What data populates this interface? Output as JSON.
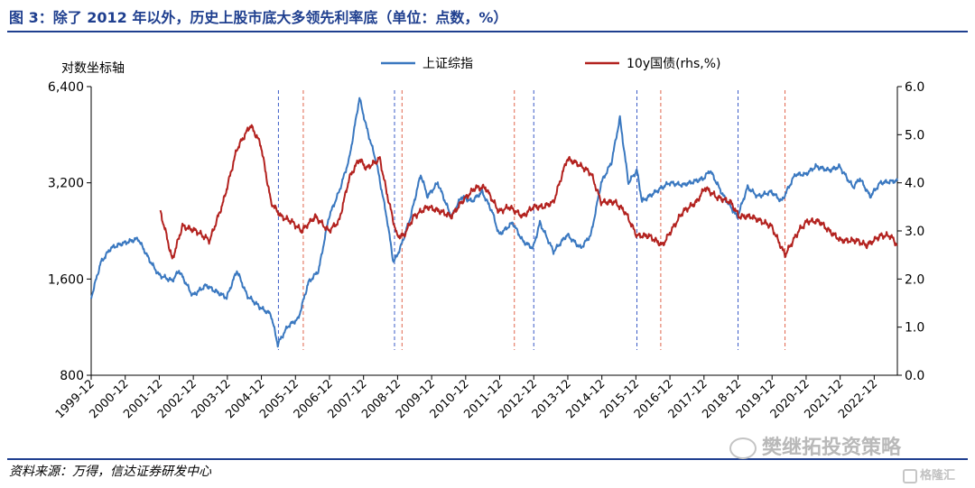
{
  "figure": {
    "title": "图 3：除了 2012 年以外，历史上股市底大多领先利率底（单位：点数，%）",
    "source": "资料来源：万得，信达证券研发中心",
    "watermark": "樊继拓投资策略",
    "brand": "格隆汇"
  },
  "chart_data": {
    "type": "line",
    "y_left_label": "对数坐标轴",
    "y_left_scale": "log",
    "y_left_ticks": [
      800,
      1600,
      3200,
      6400
    ],
    "y_left_tick_labels": [
      "800",
      "1,600",
      "3,200",
      "6,400"
    ],
    "y_left_range": [
      800,
      6400
    ],
    "y_right_ticks": [
      0.0,
      1.0,
      2.0,
      3.0,
      4.0,
      5.0,
      6.0
    ],
    "y_right_tick_labels": [
      "0.0",
      "1.0",
      "2.0",
      "3.0",
      "4.0",
      "5.0",
      "6.0"
    ],
    "y_right_range": [
      0,
      6
    ],
    "x_range": [
      1999.92,
      2023.6
    ],
    "x_ticks": [
      "1999-12",
      "2000-12",
      "2001-12",
      "2002-12",
      "2003-12",
      "2004-12",
      "2005-12",
      "2006-12",
      "2007-12",
      "2008-12",
      "2009-12",
      "2010-12",
      "2011-12",
      "2012-12",
      "2013-12",
      "2014-12",
      "2015-12",
      "2016-12",
      "2017-12",
      "2018-12",
      "2019-12",
      "2020-12",
      "2021-12",
      "2022-12"
    ],
    "legend_position": "top-center",
    "grid": false,
    "series": [
      {
        "name": "上证综指",
        "axis": "left",
        "color": "#3a78c0",
        "points": [
          [
            1999.92,
            1400
          ],
          [
            2000.2,
            1800
          ],
          [
            2000.5,
            2000
          ],
          [
            2000.8,
            2060
          ],
          [
            2001.3,
            2140
          ],
          [
            2001.6,
            1860
          ],
          [
            2001.9,
            1650
          ],
          [
            2002.3,
            1580
          ],
          [
            2002.5,
            1700
          ],
          [
            2002.9,
            1420
          ],
          [
            2003.3,
            1530
          ],
          [
            2003.5,
            1480
          ],
          [
            2003.9,
            1400
          ],
          [
            2004.2,
            1700
          ],
          [
            2004.5,
            1420
          ],
          [
            2004.9,
            1300
          ],
          [
            2005.2,
            1240
          ],
          [
            2005.4,
            1000
          ],
          [
            2005.7,
            1140
          ],
          [
            2006.0,
            1200
          ],
          [
            2006.3,
            1560
          ],
          [
            2006.6,
            1700
          ],
          [
            2006.9,
            2500
          ],
          [
            2007.2,
            3000
          ],
          [
            2007.5,
            3800
          ],
          [
            2007.8,
            5900
          ],
          [
            2008.0,
            4800
          ],
          [
            2008.3,
            3700
          ],
          [
            2008.6,
            2500
          ],
          [
            2008.8,
            1800
          ],
          [
            2009.0,
            2000
          ],
          [
            2009.3,
            2500
          ],
          [
            2009.6,
            3400
          ],
          [
            2009.8,
            2900
          ],
          [
            2010.1,
            3200
          ],
          [
            2010.5,
            2500
          ],
          [
            2010.8,
            2900
          ],
          [
            2011.1,
            2800
          ],
          [
            2011.4,
            3000
          ],
          [
            2011.7,
            2600
          ],
          [
            2011.9,
            2200
          ],
          [
            2012.3,
            2400
          ],
          [
            2012.6,
            2100
          ],
          [
            2012.9,
            2000
          ],
          [
            2013.1,
            2400
          ],
          [
            2013.5,
            1950
          ],
          [
            2013.9,
            2200
          ],
          [
            2014.3,
            2000
          ],
          [
            2014.6,
            2200
          ],
          [
            2014.9,
            3200
          ],
          [
            2015.2,
            3700
          ],
          [
            2015.45,
            5100
          ],
          [
            2015.7,
            3200
          ],
          [
            2015.95,
            3500
          ],
          [
            2016.1,
            2800
          ],
          [
            2016.5,
            3000
          ],
          [
            2016.9,
            3200
          ],
          [
            2017.3,
            3150
          ],
          [
            2017.9,
            3300
          ],
          [
            2018.1,
            3500
          ],
          [
            2018.5,
            2900
          ],
          [
            2018.9,
            2500
          ],
          [
            2019.2,
            3100
          ],
          [
            2019.5,
            2900
          ],
          [
            2019.9,
            3000
          ],
          [
            2020.2,
            2800
          ],
          [
            2020.6,
            3400
          ],
          [
            2020.9,
            3400
          ],
          [
            2021.2,
            3600
          ],
          [
            2021.6,
            3500
          ],
          [
            2021.9,
            3600
          ],
          [
            2022.3,
            3100
          ],
          [
            2022.5,
            3300
          ],
          [
            2022.8,
            2900
          ],
          [
            2023.1,
            3200
          ],
          [
            2023.6,
            3250
          ]
        ]
      },
      {
        "name": "10y国债(rhs,%)",
        "axis": "right",
        "color": "#b3221f",
        "points": [
          [
            2001.95,
            3.4
          ],
          [
            2002.1,
            3.0
          ],
          [
            2002.3,
            2.4
          ],
          [
            2002.6,
            3.1
          ],
          [
            2003.0,
            3.0
          ],
          [
            2003.4,
            2.8
          ],
          [
            2003.8,
            3.6
          ],
          [
            2004.2,
            4.7
          ],
          [
            2004.6,
            5.2
          ],
          [
            2004.9,
            4.8
          ],
          [
            2005.2,
            3.6
          ],
          [
            2005.5,
            3.3
          ],
          [
            2005.8,
            3.2
          ],
          [
            2006.1,
            3.0
          ],
          [
            2006.5,
            3.3
          ],
          [
            2006.9,
            3.0
          ],
          [
            2007.2,
            3.2
          ],
          [
            2007.5,
            4.1
          ],
          [
            2007.8,
            4.5
          ],
          [
            2008.0,
            4.3
          ],
          [
            2008.4,
            4.5
          ],
          [
            2008.6,
            3.8
          ],
          [
            2008.9,
            2.9
          ],
          [
            2009.1,
            2.9
          ],
          [
            2009.4,
            3.3
          ],
          [
            2009.8,
            3.5
          ],
          [
            2010.2,
            3.4
          ],
          [
            2010.5,
            3.3
          ],
          [
            2010.8,
            3.6
          ],
          [
            2011.2,
            3.9
          ],
          [
            2011.5,
            3.9
          ],
          [
            2011.9,
            3.4
          ],
          [
            2012.2,
            3.5
          ],
          [
            2012.6,
            3.3
          ],
          [
            2012.9,
            3.5
          ],
          [
            2013.2,
            3.5
          ],
          [
            2013.5,
            3.6
          ],
          [
            2013.9,
            4.5
          ],
          [
            2014.2,
            4.4
          ],
          [
            2014.6,
            4.2
          ],
          [
            2014.9,
            3.6
          ],
          [
            2015.3,
            3.6
          ],
          [
            2015.6,
            3.4
          ],
          [
            2015.95,
            2.9
          ],
          [
            2016.3,
            2.9
          ],
          [
            2016.7,
            2.7
          ],
          [
            2016.95,
            3.0
          ],
          [
            2017.3,
            3.4
          ],
          [
            2017.7,
            3.6
          ],
          [
            2017.95,
            3.9
          ],
          [
            2018.3,
            3.7
          ],
          [
            2018.7,
            3.6
          ],
          [
            2018.95,
            3.3
          ],
          [
            2019.3,
            3.3
          ],
          [
            2019.6,
            3.2
          ],
          [
            2019.9,
            3.1
          ],
          [
            2020.1,
            2.8
          ],
          [
            2020.3,
            2.5
          ],
          [
            2020.7,
            3.0
          ],
          [
            2020.95,
            3.2
          ],
          [
            2021.3,
            3.2
          ],
          [
            2021.6,
            3.0
          ],
          [
            2021.95,
            2.8
          ],
          [
            2022.4,
            2.8
          ],
          [
            2022.7,
            2.7
          ],
          [
            2023.1,
            2.9
          ],
          [
            2023.4,
            2.9
          ],
          [
            2023.6,
            2.7
          ]
        ]
      }
    ],
    "market_bottom_lines": {
      "color": "#3a5bc7",
      "x": [
        2005.42,
        2008.83,
        2012.92,
        2015.95,
        2018.92
      ]
    },
    "rate_bottom_lines": {
      "color": "#e0654c",
      "x": [
        2006.15,
        2009.05,
        2012.35,
        2016.65,
        2020.3
      ]
    }
  }
}
